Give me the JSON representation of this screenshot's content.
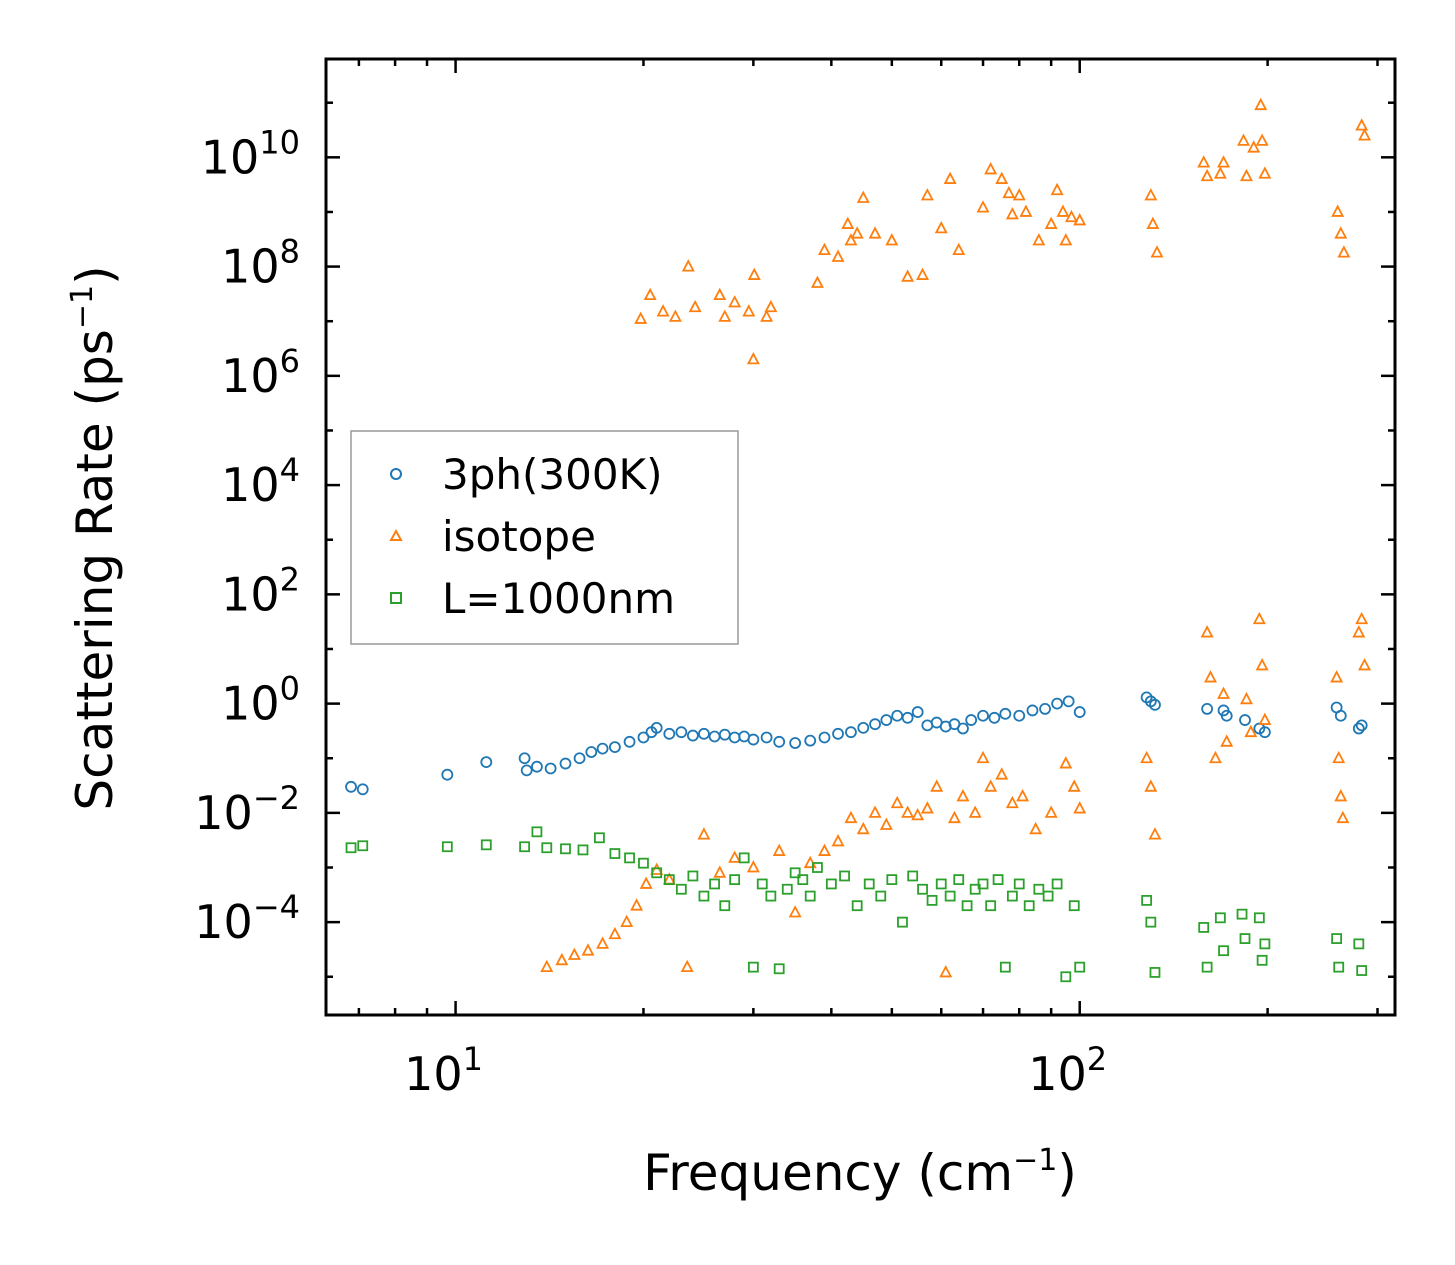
{
  "chart_data": {
    "type": "scatter",
    "title": "",
    "xlabel": {
      "text": "Frequency (cm",
      "sup": "−1",
      "tail": ")"
    },
    "ylabel": {
      "text": "Scattering Rate (ps",
      "sup": "−1",
      "tail": ")"
    },
    "xscale": "log",
    "yscale": "log",
    "xlim": [
      6.2,
      320
    ],
    "ylim_log10": [
      -5.7,
      11.8
    ],
    "x_ticks": [
      {
        "value": 10,
        "base": "10",
        "exp": "1"
      },
      {
        "value": 100,
        "base": "10",
        "exp": "2"
      }
    ],
    "y_ticks": [
      {
        "value_log10": 10,
        "base": "10",
        "exp": "10"
      },
      {
        "value_log10": 8,
        "base": "10",
        "exp": "8"
      },
      {
        "value_log10": 6,
        "base": "10",
        "exp": "6"
      },
      {
        "value_log10": 4,
        "base": "10",
        "exp": "4"
      },
      {
        "value_log10": 2,
        "base": "10",
        "exp": "2"
      },
      {
        "value_log10": 0,
        "base": "10",
        "exp": "0"
      },
      {
        "value_log10": -2,
        "base": "10",
        "exp": "−2"
      },
      {
        "value_log10": -4,
        "base": "10",
        "exp": "−4"
      }
    ],
    "legend_position": "center-left",
    "series": [
      {
        "name": "3ph(300K)",
        "marker": "circle",
        "color": "#1f77b4",
        "points": [
          [
            6.8,
            0.03
          ],
          [
            7.1,
            0.027
          ],
          [
            9.7,
            0.05
          ],
          [
            11.2,
            0.085
          ],
          [
            12.9,
            0.1
          ],
          [
            13.0,
            0.06
          ],
          [
            13.5,
            0.07
          ],
          [
            14.2,
            0.065
          ],
          [
            15.0,
            0.08
          ],
          [
            15.8,
            0.1
          ],
          [
            16.5,
            0.13
          ],
          [
            17.2,
            0.15
          ],
          [
            18.0,
            0.16
          ],
          [
            19.0,
            0.2
          ],
          [
            20.0,
            0.24
          ],
          [
            20.6,
            0.3
          ],
          [
            21.0,
            0.36
          ],
          [
            22.0,
            0.28
          ],
          [
            23.0,
            0.3
          ],
          [
            24.0,
            0.26
          ],
          [
            25.0,
            0.28
          ],
          [
            26.0,
            0.25
          ],
          [
            27.0,
            0.27
          ],
          [
            28.0,
            0.24
          ],
          [
            29.0,
            0.25
          ],
          [
            30.0,
            0.22
          ],
          [
            31.5,
            0.24
          ],
          [
            33.0,
            0.2
          ],
          [
            35.0,
            0.19
          ],
          [
            37.0,
            0.21
          ],
          [
            39.0,
            0.24
          ],
          [
            41.0,
            0.28
          ],
          [
            43.0,
            0.3
          ],
          [
            45.0,
            0.36
          ],
          [
            47.0,
            0.42
          ],
          [
            49.0,
            0.5
          ],
          [
            51.0,
            0.6
          ],
          [
            53.0,
            0.55
          ],
          [
            55.0,
            0.7
          ],
          [
            57.0,
            0.4
          ],
          [
            59.0,
            0.45
          ],
          [
            61.0,
            0.38
          ],
          [
            63.0,
            0.42
          ],
          [
            65.0,
            0.35
          ],
          [
            67.0,
            0.5
          ],
          [
            70.0,
            0.6
          ],
          [
            73.0,
            0.55
          ],
          [
            76.0,
            0.65
          ],
          [
            80.0,
            0.6
          ],
          [
            84.0,
            0.75
          ],
          [
            88.0,
            0.8
          ],
          [
            92.0,
            1.0
          ],
          [
            96.0,
            1.1
          ],
          [
            100.0,
            0.7
          ],
          [
            128.0,
            1.3
          ],
          [
            130.0,
            1.1
          ],
          [
            132.0,
            0.95
          ],
          [
            160.0,
            0.8
          ],
          [
            170.0,
            0.75
          ],
          [
            172.0,
            0.6
          ],
          [
            184.0,
            0.5
          ],
          [
            194.0,
            0.35
          ],
          [
            198.0,
            0.3
          ],
          [
            258.0,
            0.85
          ],
          [
            262.0,
            0.6
          ],
          [
            280.0,
            0.35
          ],
          [
            283.0,
            0.4
          ]
        ]
      },
      {
        "name": "isotope",
        "marker": "triangle",
        "color": "#ff7f0e",
        "points": [
          [
            19.8,
            11000000.0
          ],
          [
            20.5,
            30000000.0
          ],
          [
            21.5,
            15000000.0
          ],
          [
            22.5,
            12000000.0
          ],
          [
            23.6,
            100000000.0
          ],
          [
            24.2,
            18000000.0
          ],
          [
            26.5,
            30000000.0
          ],
          [
            27.0,
            12000000.0
          ],
          [
            28.0,
            22000000.0
          ],
          [
            29.5,
            15000000.0
          ],
          [
            30.1,
            70000000.0
          ],
          [
            30.0,
            2000000.0
          ],
          [
            31.5,
            12000000.0
          ],
          [
            32.0,
            18000000.0
          ],
          [
            38.0,
            50000000.0
          ],
          [
            39.0,
            200000000.0
          ],
          [
            41.0,
            150000000.0
          ],
          [
            42.5,
            600000000.0
          ],
          [
            43.0,
            300000000.0
          ],
          [
            44.0,
            400000000.0
          ],
          [
            45.0,
            1800000000.0
          ],
          [
            47.0,
            400000000.0
          ],
          [
            50.0,
            300000000.0
          ],
          [
            53.0,
            65000000.0
          ],
          [
            56.0,
            70000000.0
          ],
          [
            57.0,
            2000000000.0
          ],
          [
            60.0,
            500000000.0
          ],
          [
            62.0,
            4000000000.0
          ],
          [
            64.0,
            200000000.0
          ],
          [
            70.0,
            1200000000.0
          ],
          [
            72.0,
            6000000000.0
          ],
          [
            75.0,
            4000000000.0
          ],
          [
            77.0,
            2200000000.0
          ],
          [
            78.0,
            900000000.0
          ],
          [
            80.0,
            2000000000.0
          ],
          [
            82.0,
            1000000000.0
          ],
          [
            86.0,
            300000000.0
          ],
          [
            90.0,
            600000000.0
          ],
          [
            92.0,
            2500000000.0
          ],
          [
            94.0,
            1000000000.0
          ],
          [
            95.0,
            300000000.0
          ],
          [
            97.0,
            800000000.0
          ],
          [
            100.0,
            700000000.0
          ],
          [
            130.0,
            2000000000.0
          ],
          [
            131.0,
            600000000.0
          ],
          [
            133.0,
            180000000.0
          ],
          [
            158.0,
            8000000000.0
          ],
          [
            160.0,
            4500000000.0
          ],
          [
            168.0,
            5000000000.0
          ],
          [
            170.0,
            8000000000.0
          ],
          [
            183.0,
            20000000000.0
          ],
          [
            185.0,
            4500000000.0
          ],
          [
            190.0,
            15000000000.0
          ],
          [
            195.0,
            90000000000.0
          ],
          [
            196.0,
            20000000000.0
          ],
          [
            198.0,
            5000000000.0
          ],
          [
            259.0,
            1000000000.0
          ],
          [
            262.0,
            400000000.0
          ],
          [
            265.0,
            180000000.0
          ],
          [
            283.0,
            38000000000.0
          ],
          [
            286.0,
            25000000000.0
          ],
          [
            14.0,
            1.5e-05
          ],
          [
            14.8,
            2e-05
          ],
          [
            15.5,
            2.5e-05
          ],
          [
            16.3,
            3e-05
          ],
          [
            17.2,
            4e-05
          ],
          [
            18.0,
            6e-05
          ],
          [
            18.8,
            0.0001
          ],
          [
            19.5,
            0.0002
          ],
          [
            20.2,
            0.0005
          ],
          [
            21.0,
            0.0009
          ],
          [
            22.0,
            0.0006
          ],
          [
            23.5,
            1.5e-05
          ],
          [
            25.0,
            0.004
          ],
          [
            26.5,
            0.0008
          ],
          [
            28.0,
            0.0015
          ],
          [
            30.0,
            0.001
          ],
          [
            33.0,
            0.002
          ],
          [
            35.0,
            0.00015
          ],
          [
            37.0,
            0.0012
          ],
          [
            39.0,
            0.002
          ],
          [
            41.0,
            0.003
          ],
          [
            43.0,
            0.008
          ],
          [
            45.0,
            0.005
          ],
          [
            47.0,
            0.01
          ],
          [
            49.0,
            0.006
          ],
          [
            51.0,
            0.015
          ],
          [
            53.0,
            0.01
          ],
          [
            55.0,
            0.009
          ],
          [
            57.0,
            0.012
          ],
          [
            59.0,
            0.03
          ],
          [
            61.0,
            1.2e-05
          ],
          [
            63.0,
            0.008
          ],
          [
            65.0,
            0.02
          ],
          [
            68.0,
            0.01
          ],
          [
            70.0,
            0.1
          ],
          [
            72.0,
            0.03
          ],
          [
            75.0,
            0.05
          ],
          [
            78.0,
            0.015
          ],
          [
            81.0,
            0.02
          ],
          [
            85.0,
            0.005
          ],
          [
            90.0,
            0.01
          ],
          [
            95.0,
            0.08
          ],
          [
            98.0,
            0.03
          ],
          [
            100.0,
            0.012
          ],
          [
            128.0,
            0.1
          ],
          [
            130.0,
            0.03
          ],
          [
            132.0,
            0.004
          ],
          [
            160.0,
            20
          ],
          [
            162.0,
            3
          ],
          [
            165.0,
            0.1
          ],
          [
            170.0,
            1.5
          ],
          [
            172.0,
            0.2
          ],
          [
            185.0,
            1.2
          ],
          [
            188.0,
            0.3
          ],
          [
            194.0,
            35
          ],
          [
            196.0,
            5
          ],
          [
            198.0,
            0.5
          ],
          [
            258.0,
            3
          ],
          [
            260.0,
            0.1
          ],
          [
            262.0,
            0.02
          ],
          [
            264.0,
            0.008
          ],
          [
            280.0,
            20
          ],
          [
            283.0,
            35
          ],
          [
            286.0,
            5
          ]
        ]
      },
      {
        "name": "L=1000nm",
        "marker": "square",
        "color": "#2ca02c",
        "points": [
          [
            6.8,
            0.0023
          ],
          [
            7.1,
            0.0025
          ],
          [
            9.7,
            0.0024
          ],
          [
            11.2,
            0.0026
          ],
          [
            12.9,
            0.0024
          ],
          [
            13.5,
            0.0045
          ],
          [
            14.0,
            0.0023
          ],
          [
            15.0,
            0.0022
          ],
          [
            16.0,
            0.0021
          ],
          [
            17.0,
            0.0035
          ],
          [
            18.0,
            0.0018
          ],
          [
            19.0,
            0.0015
          ],
          [
            20.0,
            0.0012
          ],
          [
            21.0,
            0.0008
          ],
          [
            22.0,
            0.0006
          ],
          [
            23.0,
            0.0004
          ],
          [
            24.0,
            0.0007
          ],
          [
            25.0,
            0.0003
          ],
          [
            26.0,
            0.0005
          ],
          [
            27.0,
            0.0002
          ],
          [
            28.0,
            0.0006
          ],
          [
            29.0,
            0.0015
          ],
          [
            30.0,
            1.5e-05
          ],
          [
            31.0,
            0.0005
          ],
          [
            32.0,
            0.0003
          ],
          [
            33.0,
            1.4e-05
          ],
          [
            34.0,
            0.0004
          ],
          [
            35.0,
            0.0008
          ],
          [
            36.0,
            0.0006
          ],
          [
            37.0,
            0.0003
          ],
          [
            38.0,
            0.001
          ],
          [
            40.0,
            0.0005
          ],
          [
            42.0,
            0.0007
          ],
          [
            44.0,
            0.0002
          ],
          [
            46.0,
            0.0005
          ],
          [
            48.0,
            0.0003
          ],
          [
            50.0,
            0.0006
          ],
          [
            52.0,
            0.0001
          ],
          [
            54.0,
            0.0007
          ],
          [
            56.0,
            0.0004
          ],
          [
            58.0,
            0.00025
          ],
          [
            60.0,
            0.0005
          ],
          [
            62.0,
            0.0003
          ],
          [
            64.0,
            0.0006
          ],
          [
            66.0,
            0.0002
          ],
          [
            68.0,
            0.0004
          ],
          [
            70.0,
            0.0005
          ],
          [
            72.0,
            0.0002
          ],
          [
            74.0,
            0.0006
          ],
          [
            76.0,
            1.5e-05
          ],
          [
            78.0,
            0.0003
          ],
          [
            80.0,
            0.0005
          ],
          [
            83.0,
            0.0002
          ],
          [
            86.0,
            0.0004
          ],
          [
            89.0,
            0.0003
          ],
          [
            92.0,
            0.0005
          ],
          [
            95.0,
            1e-05
          ],
          [
            98.0,
            0.0002
          ],
          [
            100.0,
            1.5e-05
          ],
          [
            128.0,
            0.00025
          ],
          [
            130.0,
            0.0001
          ],
          [
            132.0,
            1.2e-05
          ],
          [
            158.0,
            8e-05
          ],
          [
            160.0,
            1.5e-05
          ],
          [
            168.0,
            0.00012
          ],
          [
            170.0,
            3e-05
          ],
          [
            182.0,
            0.00014
          ],
          [
            184.0,
            5e-05
          ],
          [
            194.0,
            0.00012
          ],
          [
            196.0,
            2e-05
          ],
          [
            198.0,
            4e-05
          ],
          [
            258.0,
            5e-05
          ],
          [
            260.0,
            1.5e-05
          ],
          [
            280.0,
            4e-05
          ],
          [
            283.0,
            1.3e-05
          ]
        ]
      }
    ]
  }
}
